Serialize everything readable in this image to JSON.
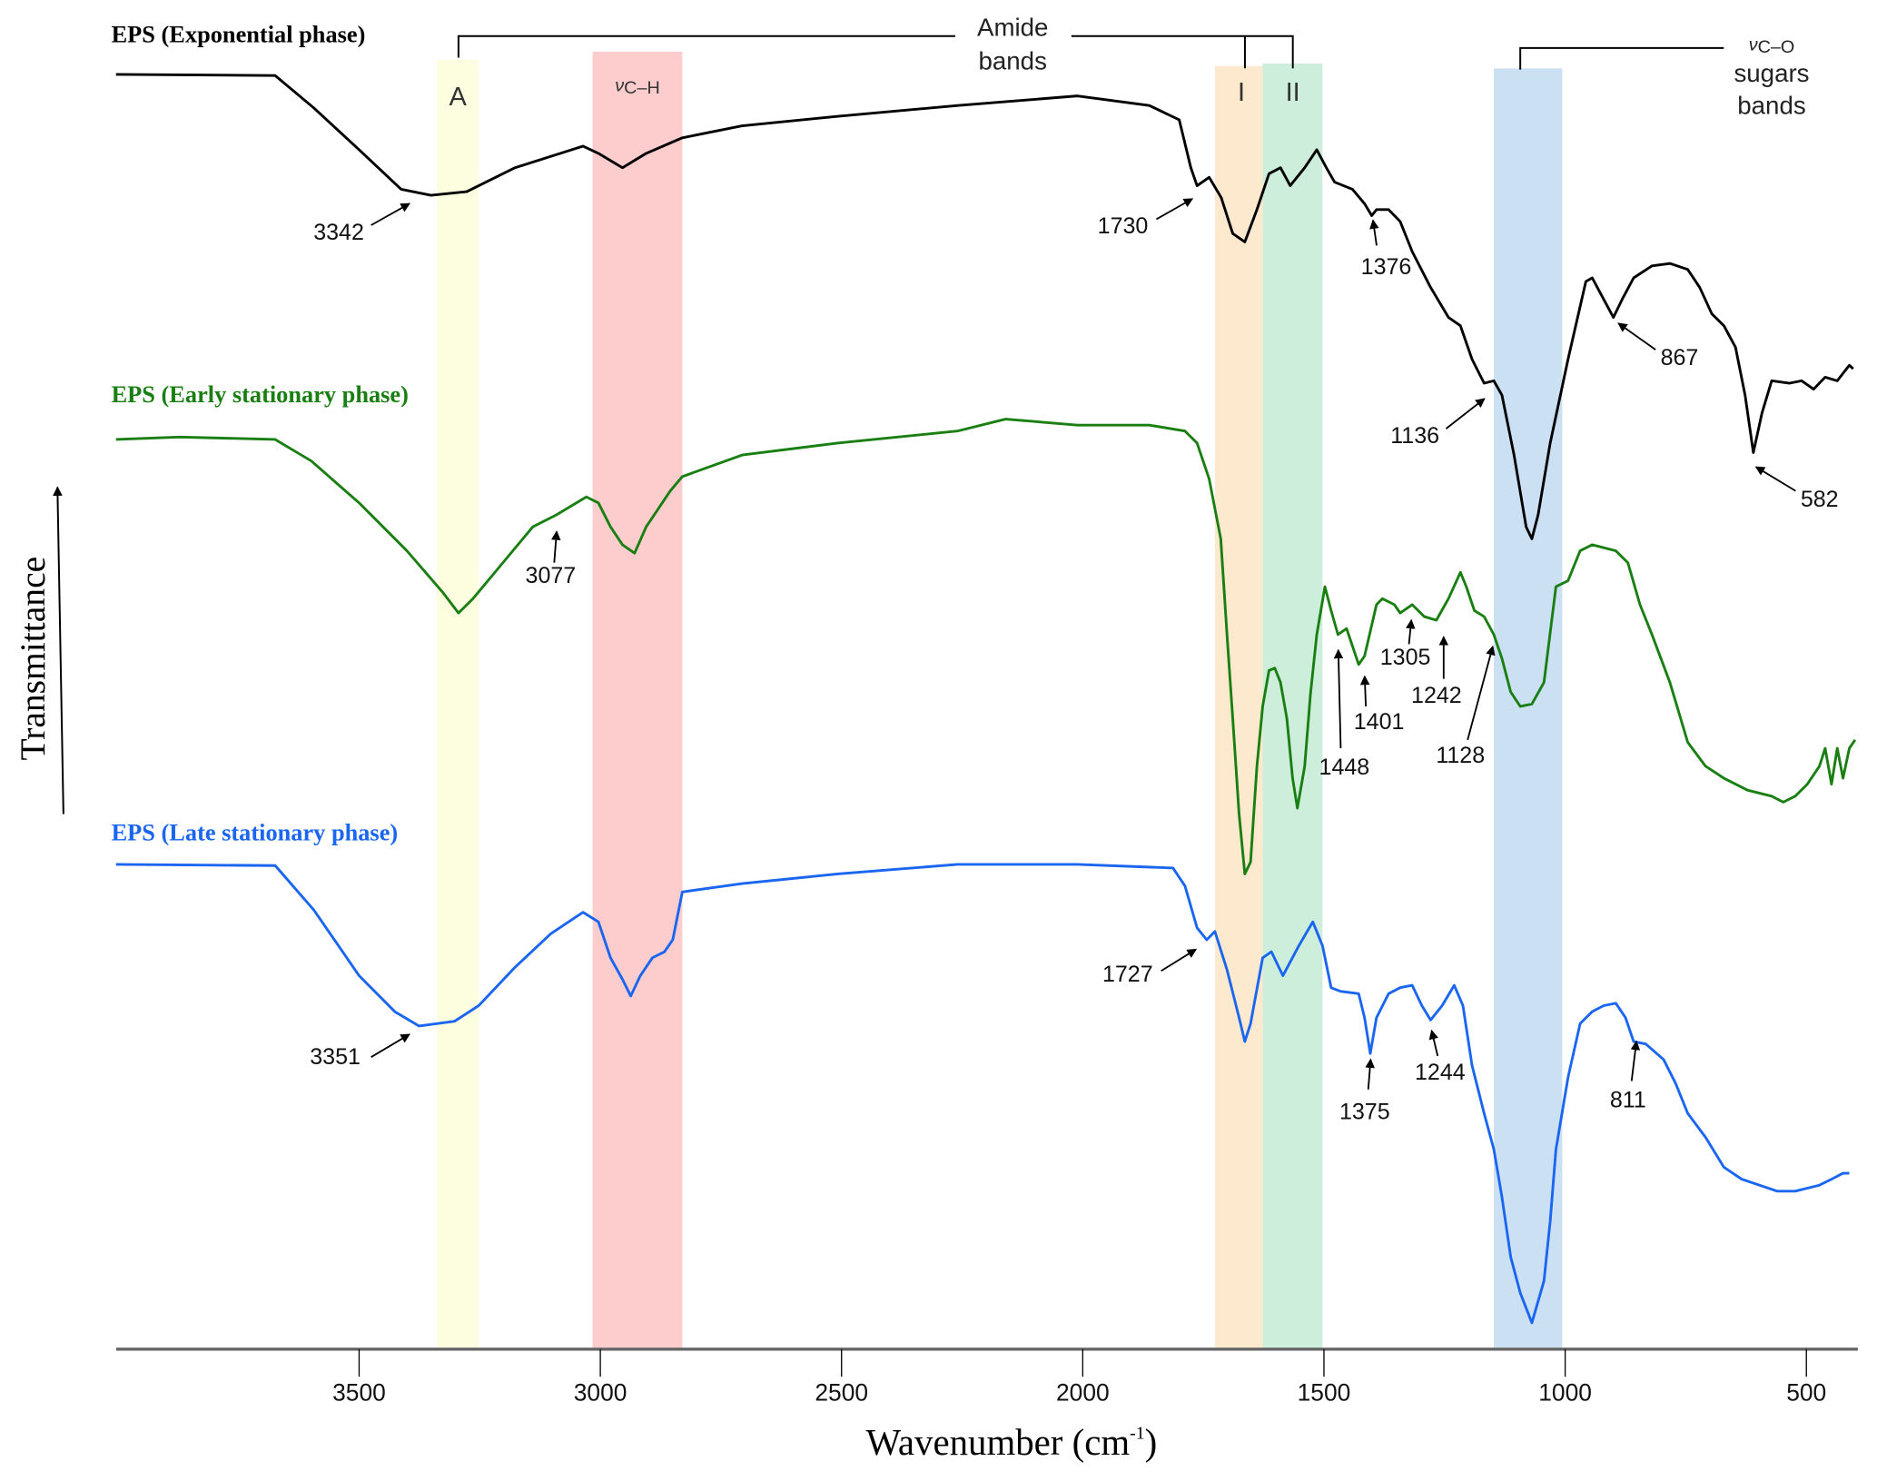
{
  "chart_data": {
    "type": "line",
    "xlabel": {
      "text": "Wavenumber (cm",
      "sup": "-1",
      "close": ")"
    },
    "ylabel": "Transmittance",
    "xlim": [
      4004,
      393
    ],
    "x_reversed": true,
    "ylim": [
      0,
      110
    ],
    "y_units": "arbitrary (no y-axis scale printed; curves vertically offset)",
    "grid": false,
    "x_ticks": [
      3500,
      3000,
      2500,
      2000,
      1500,
      1000,
      500
    ],
    "bands": [
      {
        "label": "A",
        "from": 3339,
        "to": 3252,
        "color": "#fdfddf"
      },
      {
        "label_symbol": "ν",
        "label_sub": "C–H",
        "from": 3016,
        "to": 2830,
        "color": "#fdcdcd"
      },
      {
        "label": "I",
        "from": 1726,
        "to": 1627,
        "color": "#fde9cd"
      },
      {
        "label": "II",
        "from": 1627,
        "to": 1503,
        "color": "#cdeedb"
      },
      {
        "from": 1148,
        "to": 1006,
        "color": "#cce0f4"
      }
    ],
    "band_groups": {
      "amide": {
        "line1": "Amide",
        "line2": "bands"
      },
      "sugars": {
        "symbol": "ν",
        "sub": "C–O",
        "line2": "sugars",
        "line3": "bands"
      }
    },
    "series": [
      {
        "name": "EPS (Exponential phase)",
        "color": "#000000",
        "points": [
          [
            4004,
            106.5
          ],
          [
            3674,
            106.4
          ],
          [
            3594,
            103.7
          ],
          [
            3500,
            100.2
          ],
          [
            3413,
            96.9
          ],
          [
            3351,
            96.4
          ],
          [
            3277,
            96.7
          ],
          [
            3177,
            98.7
          ],
          [
            3036,
            100.5
          ],
          [
            3004,
            99.9
          ],
          [
            2954,
            98.7
          ],
          [
            2905,
            99.9
          ],
          [
            2830,
            101.2
          ],
          [
            2706,
            102.2
          ],
          [
            2507,
            103
          ],
          [
            2259,
            103.9
          ],
          [
            2011,
            104.7
          ],
          [
            1862,
            103.9
          ],
          [
            1800,
            102.7
          ],
          [
            1776,
            98.7
          ],
          [
            1763,
            97.2
          ],
          [
            1738,
            97.9
          ],
          [
            1713,
            96.2
          ],
          [
            1689,
            93.2
          ],
          [
            1664,
            92.5
          ],
          [
            1639,
            95.2
          ],
          [
            1614,
            98.2
          ],
          [
            1590,
            98.7
          ],
          [
            1570,
            97.2
          ],
          [
            1540,
            98.7
          ],
          [
            1515,
            100.2
          ],
          [
            1495,
            98.7
          ],
          [
            1478,
            97.5
          ],
          [
            1441,
            96.9
          ],
          [
            1416,
            95.7
          ],
          [
            1401,
            94.7
          ],
          [
            1391,
            95.2
          ],
          [
            1366,
            95.2
          ],
          [
            1342,
            94.2
          ],
          [
            1317,
            91.7
          ],
          [
            1279,
            88.7
          ],
          [
            1242,
            86.2
          ],
          [
            1217,
            85.5
          ],
          [
            1193,
            82.7
          ],
          [
            1168,
            80.7
          ],
          [
            1148,
            80.9
          ],
          [
            1131,
            79.7
          ],
          [
            1106,
            74.7
          ],
          [
            1081,
            68.7
          ],
          [
            1069,
            67.7
          ],
          [
            1056,
            69.7
          ],
          [
            1031,
            75.7
          ],
          [
            994,
            82.7
          ],
          [
            957,
            89.2
          ],
          [
            944,
            89.5
          ],
          [
            920,
            87.7
          ],
          [
            900,
            86.2
          ],
          [
            882,
            87.7
          ],
          [
            858,
            89.5
          ],
          [
            820,
            90.5
          ],
          [
            783,
            90.7
          ],
          [
            746,
            90.2
          ],
          [
            721,
            88.7
          ],
          [
            696,
            86.5
          ],
          [
            671,
            85.5
          ],
          [
            647,
            83.7
          ],
          [
            627,
            79.7
          ],
          [
            610,
            74.9
          ],
          [
            592,
            78.2
          ],
          [
            572,
            80.9
          ],
          [
            535,
            80.7
          ],
          [
            510,
            80.9
          ],
          [
            485,
            80.2
          ],
          [
            461,
            81.2
          ],
          [
            436,
            80.9
          ],
          [
            411,
            82.2
          ],
          [
            403,
            81.9
          ]
        ],
        "annotations": [
          "3342",
          "1730",
          "1376",
          "1136",
          "867",
          "582"
        ]
      },
      {
        "name": "EPS (Early stationary phase)",
        "color": "#1a7f12",
        "points": [
          [
            4004,
            76
          ],
          [
            3872,
            76.2
          ],
          [
            3674,
            76
          ],
          [
            3599,
            74.2
          ],
          [
            3500,
            70.7
          ],
          [
            3401,
            66.7
          ],
          [
            3326,
            63.2
          ],
          [
            3294,
            61.5
          ],
          [
            3264,
            62.7
          ],
          [
            3202,
            65.7
          ],
          [
            3140,
            68.7
          ],
          [
            3091,
            69.7
          ],
          [
            3029,
            71.2
          ],
          [
            3004,
            70.7
          ],
          [
            2979,
            68.7
          ],
          [
            2954,
            67.2
          ],
          [
            2929,
            66.5
          ],
          [
            2905,
            68.7
          ],
          [
            2855,
            71.7
          ],
          [
            2830,
            72.9
          ],
          [
            2706,
            74.7
          ],
          [
            2508,
            75.7
          ],
          [
            2260,
            76.7
          ],
          [
            2160,
            77.7
          ],
          [
            2011,
            77.2
          ],
          [
            1862,
            77.2
          ],
          [
            1788,
            76.7
          ],
          [
            1763,
            75.7
          ],
          [
            1738,
            72.7
          ],
          [
            1714,
            67.7
          ],
          [
            1701,
            59.7
          ],
          [
            1689,
            52.7
          ],
          [
            1676,
            44.7
          ],
          [
            1664,
            39.7
          ],
          [
            1652,
            40.7
          ],
          [
            1639,
            48.7
          ],
          [
            1627,
            53.7
          ],
          [
            1614,
            56.7
          ],
          [
            1602,
            56.9
          ],
          [
            1590,
            55.7
          ],
          [
            1577,
            52.7
          ],
          [
            1565,
            47.7
          ],
          [
            1555,
            45.2
          ],
          [
            1540,
            48.7
          ],
          [
            1528,
            54.7
          ],
          [
            1515,
            59.7
          ],
          [
            1498,
            63.7
          ],
          [
            1485,
            61.7
          ],
          [
            1471,
            59.7
          ],
          [
            1453,
            60.2
          ],
          [
            1428,
            57.2
          ],
          [
            1416,
            57.9
          ],
          [
            1391,
            62.2
          ],
          [
            1379,
            62.7
          ],
          [
            1354,
            62.2
          ],
          [
            1342,
            61.5
          ],
          [
            1317,
            62.2
          ],
          [
            1292,
            61.2
          ],
          [
            1267,
            60.9
          ],
          [
            1242,
            62.7
          ],
          [
            1217,
            64.9
          ],
          [
            1205,
            63.7
          ],
          [
            1188,
            61.7
          ],
          [
            1168,
            61.2
          ],
          [
            1148,
            59.7
          ],
          [
            1131,
            57.7
          ],
          [
            1113,
            54.9
          ],
          [
            1093,
            53.7
          ],
          [
            1069,
            53.9
          ],
          [
            1044,
            55.7
          ],
          [
            1019,
            63.7
          ],
          [
            994,
            64.2
          ],
          [
            969,
            66.7
          ],
          [
            944,
            67.2
          ],
          [
            895,
            66.7
          ],
          [
            870,
            65.7
          ],
          [
            845,
            62.2
          ],
          [
            820,
            59.7
          ],
          [
            783,
            55.7
          ],
          [
            746,
            50.7
          ],
          [
            709,
            48.7
          ],
          [
            671,
            47.7
          ],
          [
            622,
            46.7
          ],
          [
            572,
            46.2
          ],
          [
            548,
            45.7
          ],
          [
            523,
            46.2
          ],
          [
            498,
            47.2
          ],
          [
            473,
            48.7
          ],
          [
            461,
            50.2
          ],
          [
            448,
            47.2
          ],
          [
            436,
            50.2
          ],
          [
            424,
            47.7
          ],
          [
            411,
            50.2
          ],
          [
            399,
            50.9
          ]
        ],
        "annotations": [
          "3077",
          "1448",
          "1401",
          "1305",
          "1242",
          "1128"
        ]
      },
      {
        "name": "EPS (Late stationary phase)",
        "color": "#1a66f0",
        "points": [
          [
            4004,
            40.5
          ],
          [
            3674,
            40.4
          ],
          [
            3594,
            36.7
          ],
          [
            3500,
            31.2
          ],
          [
            3426,
            28.2
          ],
          [
            3376,
            27
          ],
          [
            3302,
            27.4
          ],
          [
            3252,
            28.7
          ],
          [
            3177,
            31.9
          ],
          [
            3103,
            34.7
          ],
          [
            3036,
            36.5
          ],
          [
            3004,
            35.7
          ],
          [
            2979,
            32.7
          ],
          [
            2954,
            30.9
          ],
          [
            2937,
            29.5
          ],
          [
            2917,
            31.2
          ],
          [
            2892,
            32.7
          ],
          [
            2867,
            33.2
          ],
          [
            2850,
            34.2
          ],
          [
            2830,
            38.2
          ],
          [
            2706,
            38.9
          ],
          [
            2508,
            39.7
          ],
          [
            2260,
            40.5
          ],
          [
            2011,
            40.5
          ],
          [
            1813,
            40.2
          ],
          [
            1788,
            38.7
          ],
          [
            1763,
            35.2
          ],
          [
            1743,
            34.2
          ],
          [
            1726,
            34.9
          ],
          [
            1701,
            31.7
          ],
          [
            1676,
            27.7
          ],
          [
            1664,
            25.7
          ],
          [
            1652,
            27.2
          ],
          [
            1627,
            32.7
          ],
          [
            1609,
            33.2
          ],
          [
            1585,
            31.2
          ],
          [
            1552,
            33.7
          ],
          [
            1523,
            35.7
          ],
          [
            1503,
            33.7
          ],
          [
            1485,
            30.2
          ],
          [
            1466,
            29.9
          ],
          [
            1428,
            29.7
          ],
          [
            1416,
            27.7
          ],
          [
            1404,
            24.7
          ],
          [
            1391,
            27.7
          ],
          [
            1366,
            29.7
          ],
          [
            1342,
            30.2
          ],
          [
            1317,
            30.4
          ],
          [
            1297,
            28.7
          ],
          [
            1279,
            27.5
          ],
          [
            1255,
            28.7
          ],
          [
            1230,
            30.4
          ],
          [
            1212,
            28.7
          ],
          [
            1193,
            23.7
          ],
          [
            1168,
            19.7
          ],
          [
            1148,
            16.7
          ],
          [
            1131,
            12.7
          ],
          [
            1113,
            7.7
          ],
          [
            1093,
            4.7
          ],
          [
            1069,
            2.2
          ],
          [
            1044,
            5.7
          ],
          [
            1031,
            10.7
          ],
          [
            1019,
            16.7
          ],
          [
            994,
            22.7
          ],
          [
            969,
            27.2
          ],
          [
            944,
            28.2
          ],
          [
            920,
            28.7
          ],
          [
            895,
            28.9
          ],
          [
            875,
            27.7
          ],
          [
            858,
            25.7
          ],
          [
            833,
            25.5
          ],
          [
            796,
            24.2
          ],
          [
            771,
            22.2
          ],
          [
            746,
            19.7
          ],
          [
            709,
            17.7
          ],
          [
            671,
            15.2
          ],
          [
            634,
            14.2
          ],
          [
            597,
            13.7
          ],
          [
            560,
            13.2
          ],
          [
            523,
            13.2
          ],
          [
            473,
            13.7
          ],
          [
            448,
            14.2
          ],
          [
            424,
            14.7
          ],
          [
            411,
            14.7
          ]
        ],
        "annotations": [
          "3351",
          "1727",
          "1375",
          "1244",
          "811"
        ]
      }
    ]
  }
}
